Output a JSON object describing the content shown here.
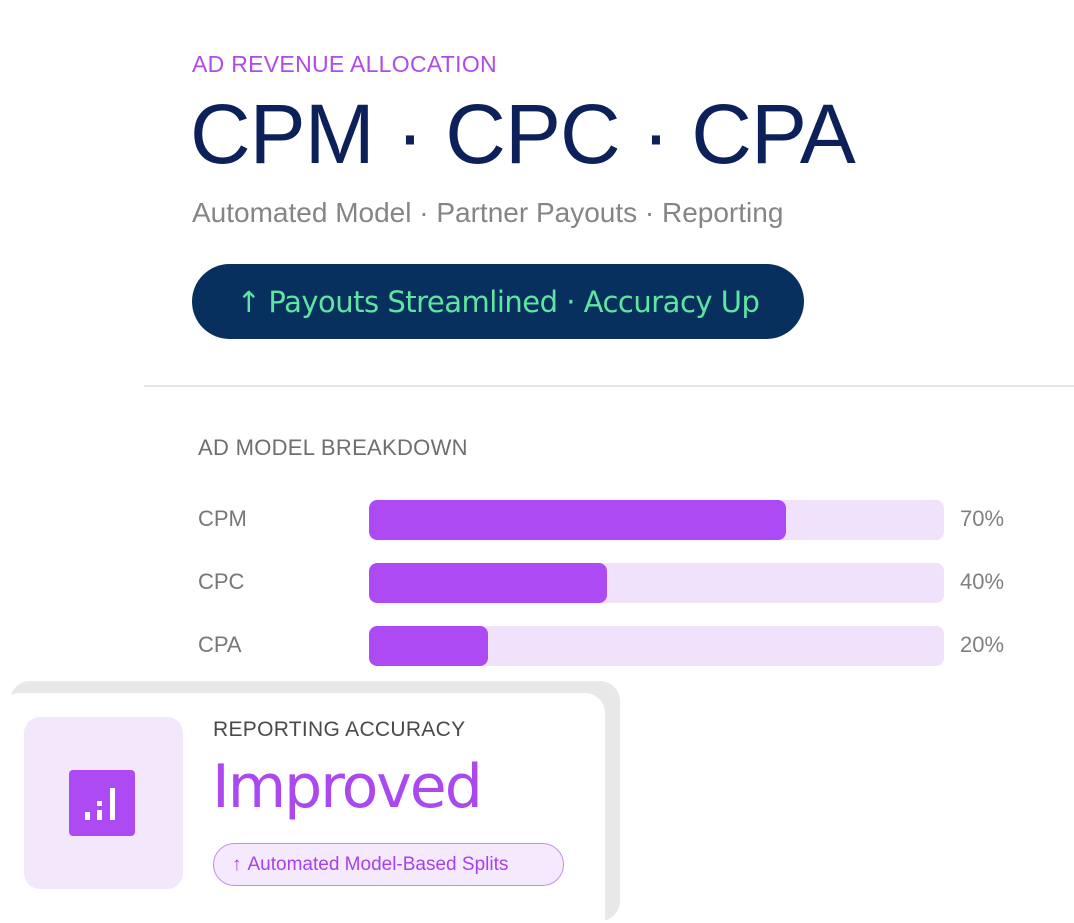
{
  "header": {
    "eyebrow": "AD REVENUE ALLOCATION",
    "headline": "CPM · CPC · CPA",
    "subhead": "Automated Model · Partner Payouts · Reporting",
    "pill_arrow": "↑",
    "pill_text": "Payouts Streamlined · Accuracy Up"
  },
  "breakdown": {
    "title": "AD MODEL BREAKDOWN",
    "rows": [
      {
        "label": "CPM",
        "value": 70,
        "value_text": "70%"
      },
      {
        "label": "CPC",
        "value": 40,
        "value_text": "40%"
      },
      {
        "label": "CPA",
        "value": 20,
        "value_text": "20%"
      }
    ]
  },
  "chart_data": {
    "type": "bar",
    "categories": [
      "CPM",
      "CPC",
      "CPA"
    ],
    "values": [
      70,
      40,
      20
    ],
    "title": "AD MODEL BREAKDOWN",
    "xlabel": "",
    "ylabel": "",
    "ylim": [
      0,
      100
    ]
  },
  "card": {
    "icon": "bar-chart-icon",
    "label": "REPORTING ACCURACY",
    "value": "Improved",
    "chip_arrow": "↑",
    "chip_text": "Automated Model-Based Splits"
  },
  "colors": {
    "accent": "#ad4af3",
    "navy": "#0c2159",
    "pill_bg": "#07305f",
    "pill_text": "#5fe5a0",
    "track": "#f1e2fb"
  }
}
